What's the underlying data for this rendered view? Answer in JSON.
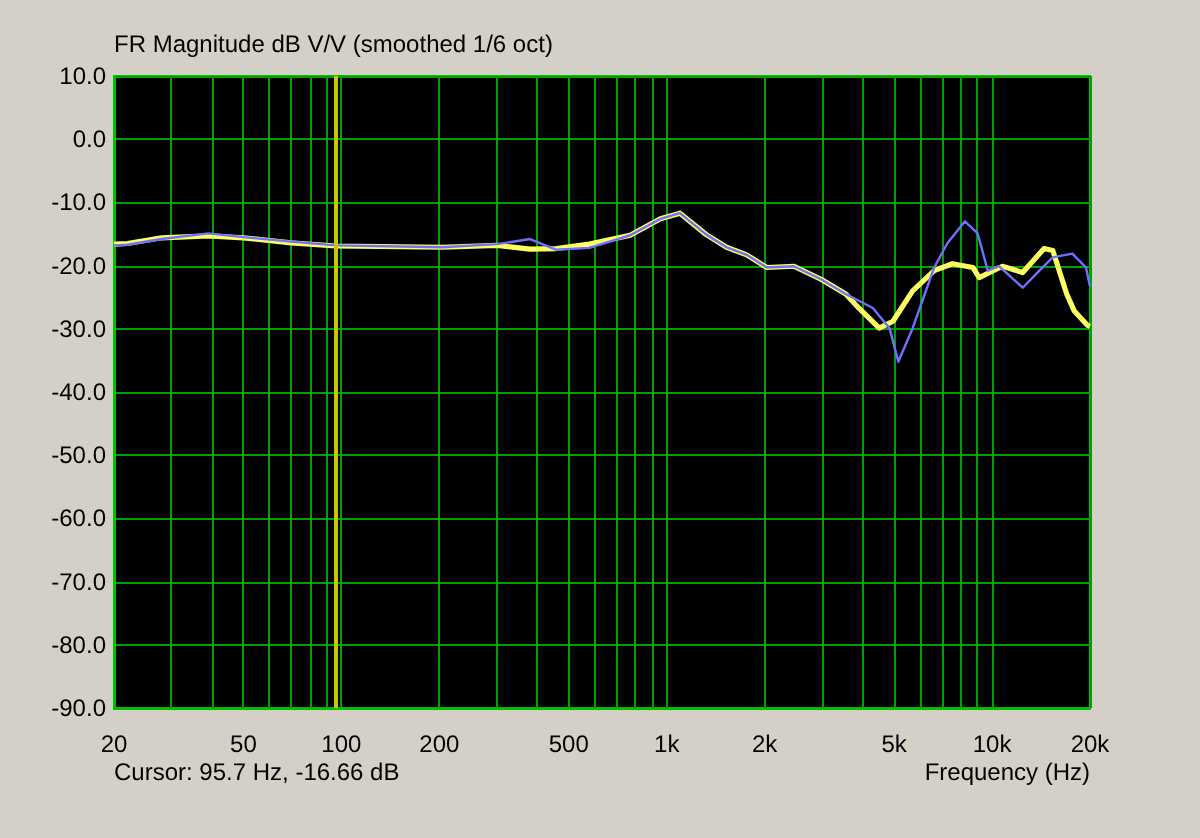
{
  "chart_data": {
    "type": "line",
    "title": "FR Magnitude dB V/V (smoothed 1/6 oct)",
    "xlabel": "Frequency (Hz)",
    "annotations": [
      "Cursor: 95.7 Hz, -16.66 dB"
    ],
    "log": "x",
    "grid": true,
    "marker": "none",
    "line_style": "solid",
    "xlim": [
      20,
      20000
    ],
    "xticks": [
      20,
      {
        "value": 30,
        "label": null
      },
      {
        "value": 40,
        "label": null
      },
      50,
      {
        "value": 60,
        "label": null
      },
      {
        "value": 70,
        "label": null
      },
      {
        "value": 80,
        "label": null
      },
      {
        "value": 90,
        "label": null
      },
      100,
      200,
      {
        "value": 300,
        "label": null
      },
      {
        "value": 400,
        "label": null
      },
      500,
      {
        "value": 600,
        "label": null
      },
      {
        "value": 700,
        "label": null
      },
      {
        "value": 800,
        "label": null
      },
      {
        "value": 900,
        "label": null
      },
      {
        "value": 1000,
        "label": "1k"
      },
      {
        "value": 2000,
        "label": "2k"
      },
      {
        "value": 3000,
        "label": null
      },
      {
        "value": 4000,
        "label": null
      },
      {
        "value": 5000,
        "label": "5k"
      },
      {
        "value": 6000,
        "label": null
      },
      {
        "value": 7000,
        "label": null
      },
      {
        "value": 8000,
        "label": null
      },
      {
        "value": 9000,
        "label": null
      },
      {
        "value": 10000,
        "label": "10k"
      },
      {
        "value": 20000,
        "label": "20k"
      }
    ],
    "ylim": [
      -90,
      10
    ],
    "yticks": [
      {
        "value": -90,
        "label": "-90.0"
      },
      {
        "value": -80,
        "label": "-80.0"
      },
      {
        "value": -70,
        "label": "-70.0"
      },
      {
        "value": -60,
        "label": "-60.0"
      },
      {
        "value": -50,
        "label": "-50.0"
      },
      {
        "value": -40,
        "label": "-40.0"
      },
      {
        "value": -30,
        "label": "-30.0"
      },
      {
        "value": -20,
        "label": "-20.0"
      },
      {
        "value": -10,
        "label": "-10.0"
      },
      {
        "value": 0,
        "label": "0.0"
      },
      {
        "value": 10,
        "label": "10.0"
      }
    ],
    "ref_lines": [
      {
        "axis": "x",
        "value": 95.7,
        "color": "#c8c800"
      }
    ],
    "series": [
      {
        "color": "#ffff60",
        "x": [
          20,
          22,
          28,
          39,
          50,
          70,
          96,
          205,
          301,
          380,
          458,
          578,
          772,
          956,
          1098,
          1323,
          1528,
          1761,
          2030,
          2460,
          2990,
          3550,
          3890,
          4500,
          4960,
          5700,
          6640,
          7550,
          8730,
          9130,
          10760,
          12420,
          14450,
          15370,
          16960,
          17900,
          19600,
          20000
        ],
        "values": [
          -16.6,
          -16.5,
          -15.6,
          -15.3,
          -15.6,
          -16.4,
          -16.9,
          -17.1,
          -16.8,
          -17.4,
          -17.3,
          -16.6,
          -15.2,
          -12.6,
          -11.7,
          -15.1,
          -17.1,
          -18.3,
          -20.3,
          -20.1,
          -22.2,
          -24.5,
          -26.7,
          -29.9,
          -28.8,
          -24,
          -20.8,
          -19.7,
          -20.3,
          -21.9,
          -20.1,
          -21.1,
          -17.3,
          -17.6,
          -24.5,
          -27.2,
          -29.4,
          -29.6
        ]
      },
      {
        "color": "#7070ff",
        "x": [
          20,
          22,
          28,
          39,
          50,
          70,
          96,
          205,
          301,
          380,
          458,
          578,
          772,
          956,
          1098,
          1323,
          1528,
          1761,
          2030,
          2460,
          2990,
          3550,
          4300,
          4840,
          5150,
          5700,
          6640,
          7280,
          8250,
          9030,
          9700,
          10500,
          12420,
          13980,
          15370,
          17650,
          19440,
          20000
        ],
        "values": [
          -16.8,
          -16.7,
          -15.8,
          -14.9,
          -15.5,
          -16.2,
          -16.8,
          -17.1,
          -16.6,
          -15.8,
          -17.5,
          -17.2,
          -15.2,
          -12.6,
          -11.7,
          -15.1,
          -17.1,
          -18.3,
          -20.3,
          -20.1,
          -22.2,
          -24.5,
          -26.7,
          -29.9,
          -35.2,
          -29.9,
          -20.3,
          -16.5,
          -13,
          -14.9,
          -20.8,
          -20.1,
          -23.5,
          -20.8,
          -18.7,
          -18.1,
          -20.3,
          -23.3
        ]
      }
    ]
  }
}
